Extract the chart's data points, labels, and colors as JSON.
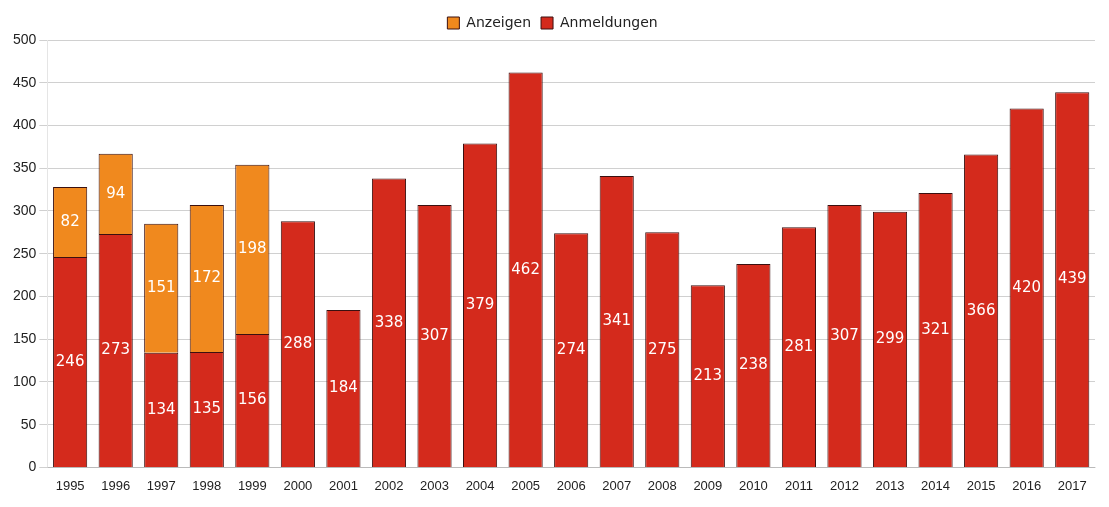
{
  "chart_data": {
    "type": "bar",
    "stacked": true,
    "categories": [
      "1995",
      "1996",
      "1997",
      "1998",
      "1999",
      "2000",
      "2001",
      "2002",
      "2003",
      "2004",
      "2005",
      "2006",
      "2007",
      "2008",
      "2009",
      "2010",
      "2011",
      "2012",
      "2013",
      "2014",
      "2015",
      "2016",
      "2017"
    ],
    "series": [
      {
        "name": "Anmeldungen",
        "color": "#d42a1c",
        "values": [
          246,
          273,
          134,
          135,
          156,
          288,
          184,
          338,
          307,
          379,
          462,
          274,
          341,
          275,
          213,
          238,
          281,
          307,
          299,
          321,
          366,
          420,
          439
        ]
      },
      {
        "name": "Anzeigen",
        "color": "#f0891e",
        "values": [
          82,
          94,
          151,
          172,
          198,
          null,
          null,
          null,
          null,
          null,
          null,
          null,
          null,
          null,
          null,
          null,
          null,
          null,
          null,
          null,
          null,
          null,
          null
        ]
      }
    ],
    "ylim": [
      0,
      500
    ],
    "yticks": [
      0,
      50,
      100,
      150,
      200,
      250,
      300,
      350,
      400,
      450,
      500
    ],
    "grid": "y",
    "legend": "top",
    "data_labels": true
  }
}
